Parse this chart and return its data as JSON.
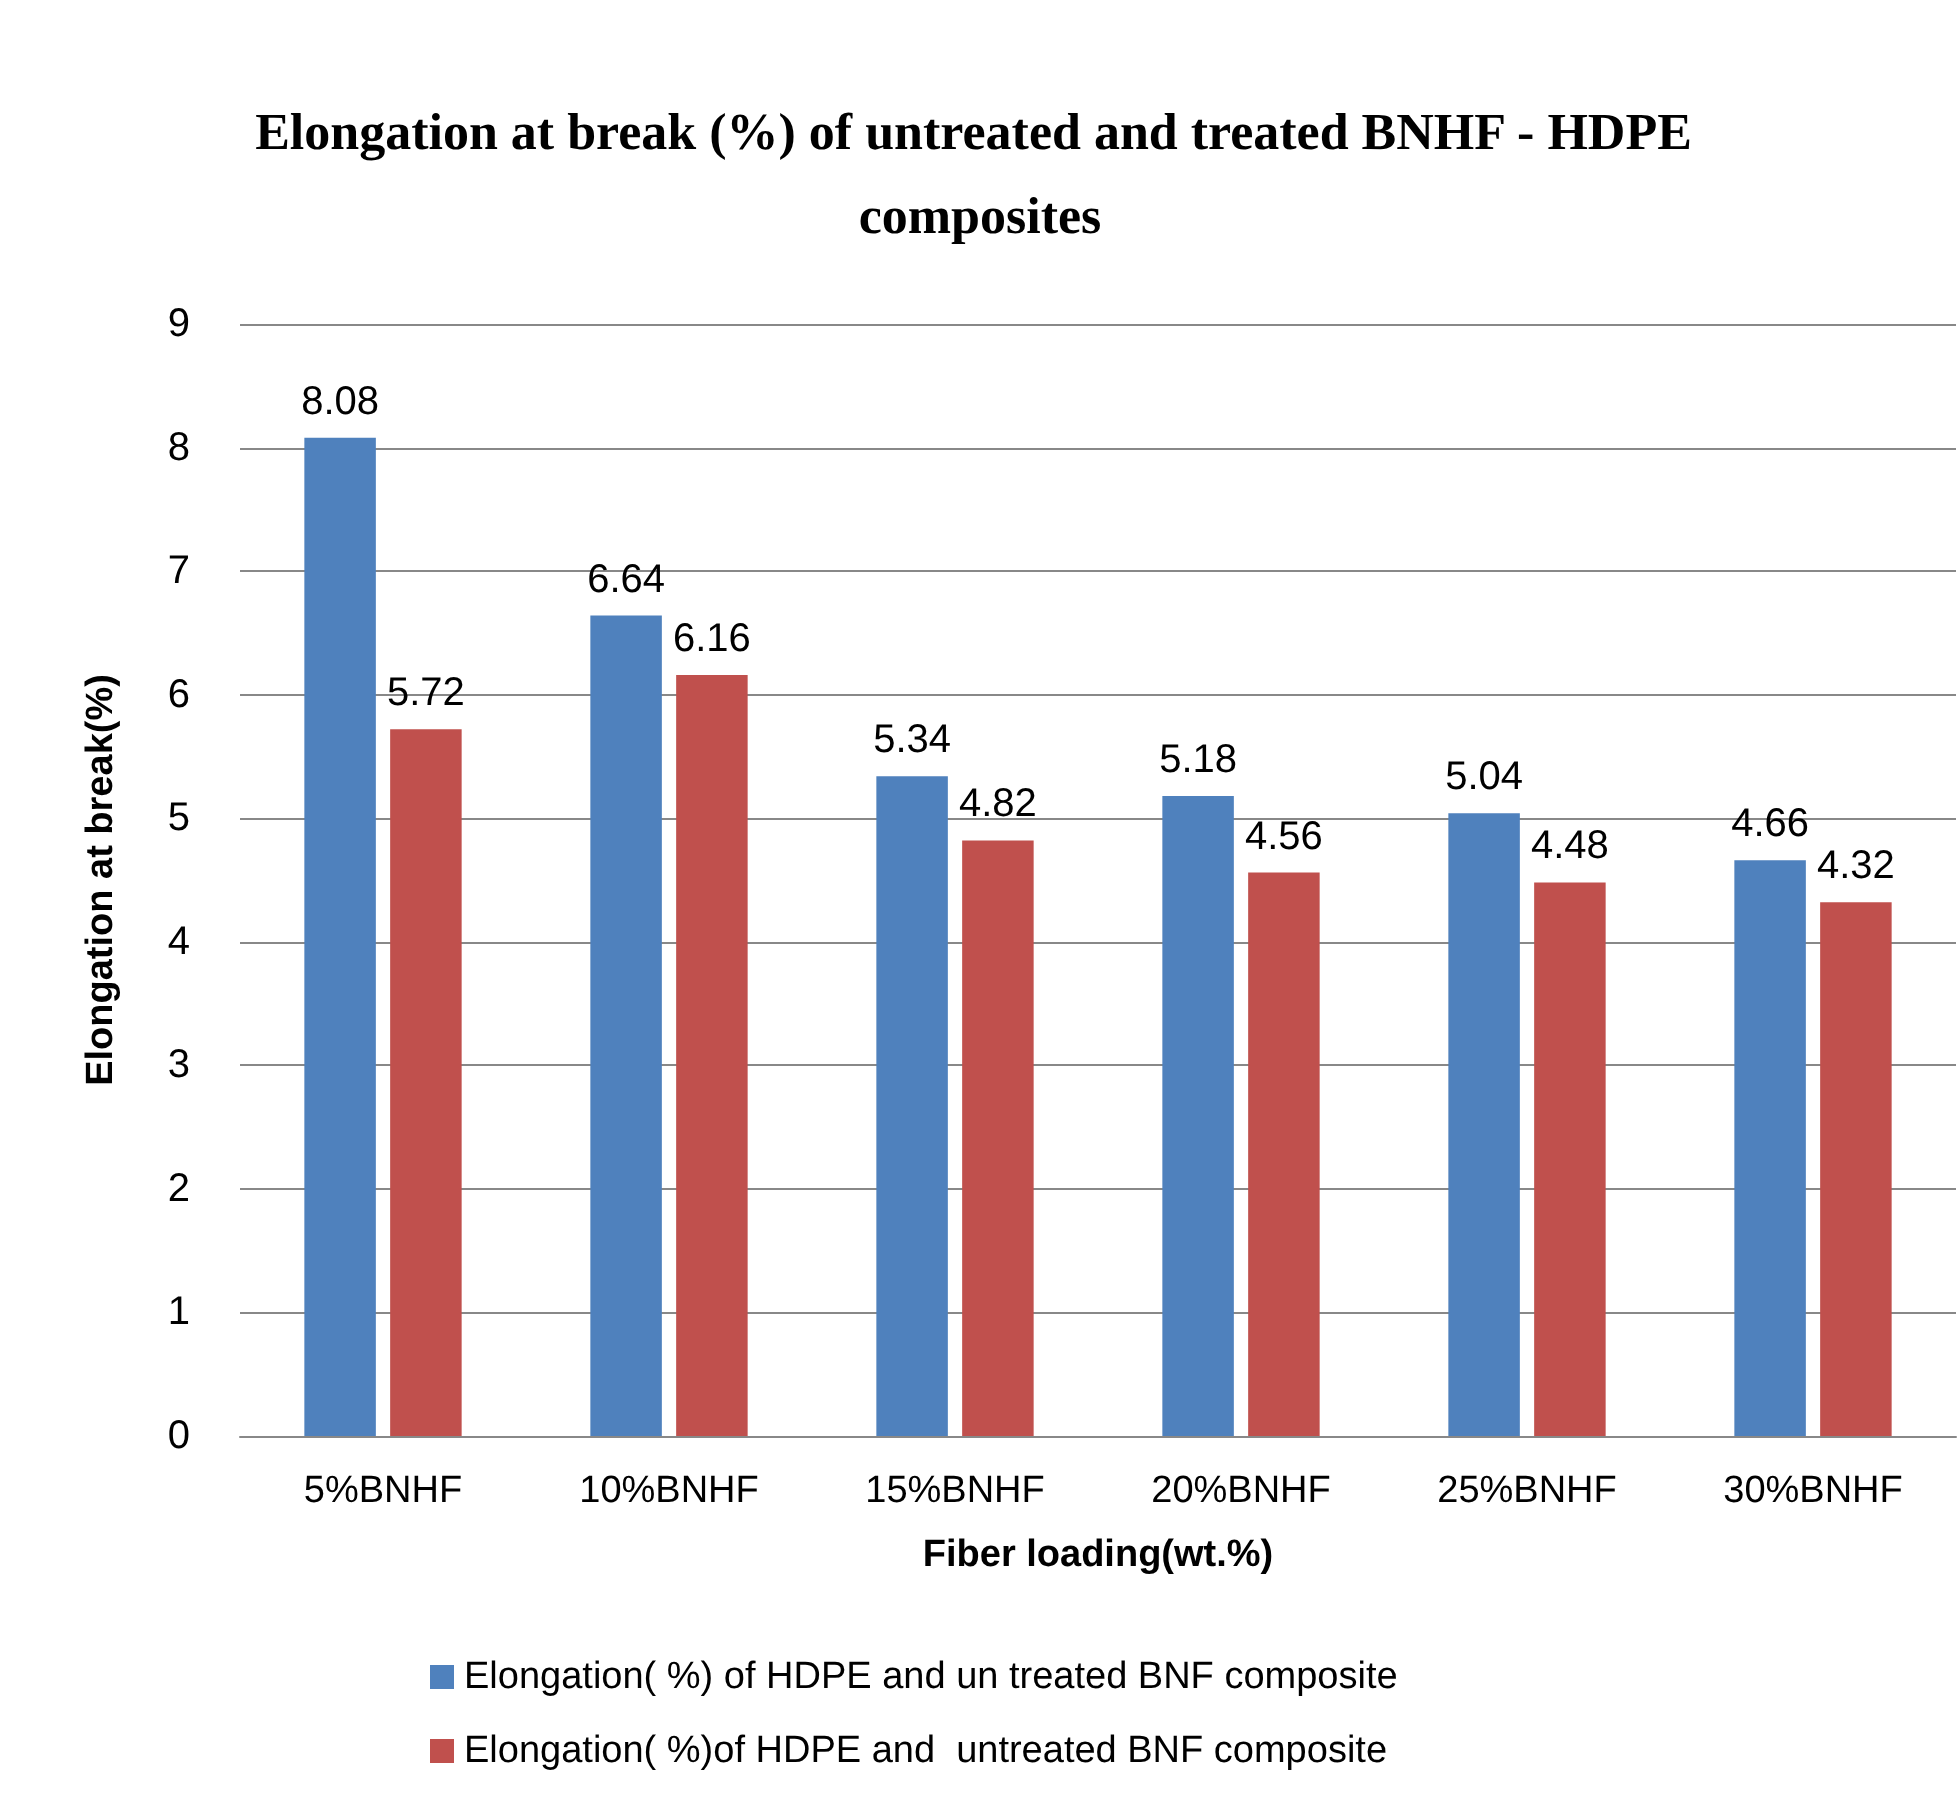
{
  "chart_data": {
    "type": "bar",
    "title": "Elongation at break (%) of untreated and treated BNHF - HDPE composites",
    "xlabel": "Fiber loading(wt.%)",
    "ylabel": "Elongation at break(%)",
    "categories": [
      "5%BNHF",
      "10%BNHF",
      "15%BNHF",
      "20%BNHF",
      "25%BNHF",
      "30%BNHF"
    ],
    "series": [
      {
        "name": "Elongation( %) of HDPE and un treated BNF composite",
        "color": "#4f81bd",
        "values": [
          8.08,
          6.64,
          5.34,
          5.18,
          5.04,
          4.66
        ]
      },
      {
        "name": "Elongation( %)of HDPE and  untreated BNF composite",
        "color": "#c0504d",
        "values": [
          5.72,
          6.16,
          4.82,
          4.56,
          4.48,
          4.32
        ]
      }
    ],
    "ylim": [
      0,
      9
    ],
    "yticks": [
      0,
      1,
      2,
      3,
      4,
      5,
      6,
      7,
      8,
      9
    ],
    "grid": "y",
    "legend": "bottom",
    "data_labels": true
  }
}
